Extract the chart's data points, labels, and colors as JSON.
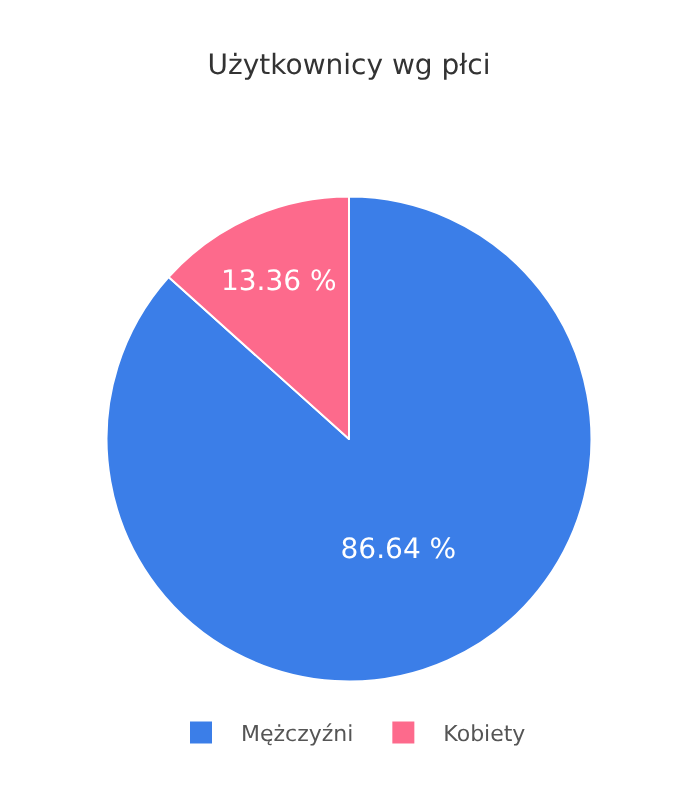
{
  "chart_data": {
    "type": "pie",
    "title": "Użytkownicy wg płci",
    "categories": [
      "Mężczyźni",
      "Kobiety"
    ],
    "values": [
      86.64,
      13.36
    ],
    "value_labels": [
      "86.64 %",
      "13.36 %"
    ],
    "colors": [
      "#3b7ee8",
      "#fd6a8c"
    ],
    "legend": "bottom"
  }
}
